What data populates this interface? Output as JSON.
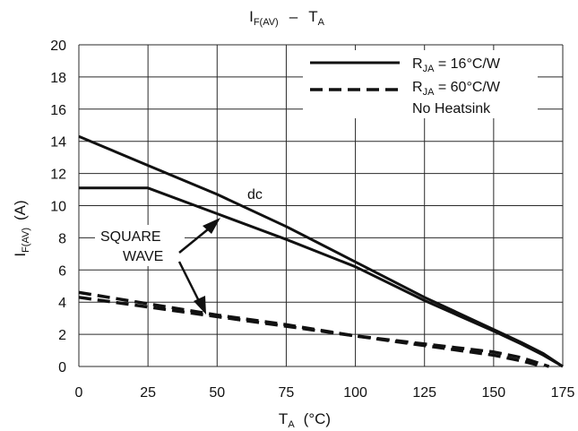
{
  "chart_data": {
    "type": "line",
    "title": {
      "main": "I",
      "sub": "F(AV)",
      "sep": "–",
      "main2": "T",
      "sub2": "A"
    },
    "xlabel": {
      "main": "T",
      "sub": "A",
      "unit": "(°C)"
    },
    "ylabel": {
      "main": "I",
      "sub": "F(AV)",
      "unit": "(A)"
    },
    "xlim": [
      0,
      175
    ],
    "ylim": [
      0,
      20
    ],
    "xticks": [
      0,
      25,
      50,
      75,
      100,
      125,
      150,
      175
    ],
    "yticks": [
      0,
      2,
      4,
      6,
      8,
      10,
      12,
      14,
      16,
      18,
      20
    ],
    "grid": true,
    "legend_position": "top-right",
    "legend": [
      {
        "style": "solid",
        "main": "R",
        "sub": "JA",
        "rest": " = 16°C/W"
      },
      {
        "style": "dashed",
        "main": "R",
        "sub": "JA",
        "rest": " = 60°C/W"
      },
      {
        "style": "none",
        "main": "No Heatsink",
        "sub": "",
        "rest": ""
      }
    ],
    "series": [
      {
        "style": "solid",
        "x": [
          0,
          25,
          50,
          75,
          100,
          125,
          150,
          160,
          168,
          175
        ],
        "y": [
          14.3,
          12.5,
          10.7,
          8.7,
          6.5,
          4.3,
          2.3,
          1.5,
          0.8,
          0
        ]
      },
      {
        "style": "solid",
        "x": [
          0,
          25,
          50,
          75,
          100,
          125,
          150,
          160,
          168,
          175
        ],
        "y": [
          11.1,
          11.1,
          9.5,
          7.9,
          6.2,
          4.1,
          2.2,
          1.4,
          0.7,
          0
        ]
      },
      {
        "style": "dashed",
        "x": [
          0,
          25,
          50,
          75,
          100,
          125,
          150,
          160,
          168
        ],
        "y": [
          4.6,
          3.9,
          3.2,
          2.6,
          1.9,
          1.3,
          0.7,
          0.35,
          0
        ]
      },
      {
        "style": "dashed",
        "x": [
          0,
          25,
          50,
          75,
          100,
          125,
          150,
          160,
          170
        ],
        "y": [
          4.3,
          3.7,
          3.1,
          2.5,
          1.9,
          1.4,
          0.9,
          0.55,
          0
        ]
      }
    ],
    "annotations": {
      "dc": "dc",
      "square_wave": [
        "SQUARE",
        "WAVE"
      ]
    }
  }
}
